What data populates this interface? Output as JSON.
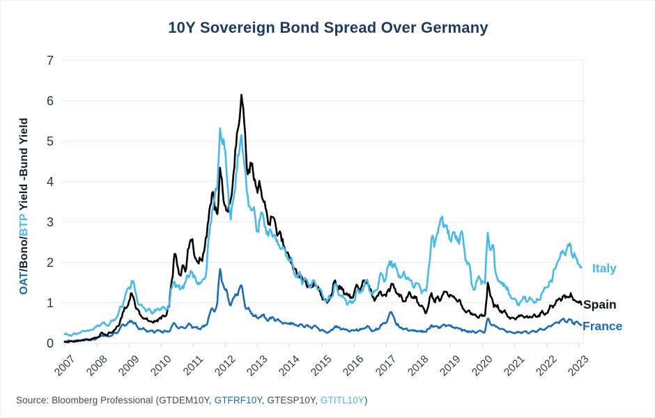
{
  "title": "10Y Sovereign Bond Spread Over Germany",
  "y_axis": {
    "label": "OAT/Bono/BTP Yield -Bund Yield",
    "label_parts": [
      {
        "text": "OAT",
        "color": "#1a6cb5"
      },
      {
        "text": "/Bono/",
        "color": "#101c2b"
      },
      {
        "text": "BTP",
        "color": "#49b8ea"
      },
      {
        "text": " Yield -Bund Yield",
        "color": "#101c2b"
      }
    ],
    "ticks": [
      "0",
      "1",
      "2",
      "3",
      "4",
      "5",
      "6",
      "7"
    ]
  },
  "x_axis": {
    "ticks": [
      "2007",
      "2008",
      "2009",
      "2010",
      "2011",
      "2012",
      "2013",
      "2014",
      "2015",
      "2016",
      "2017",
      "2018",
      "2019",
      "2020",
      "2021",
      "2022",
      "2023"
    ]
  },
  "legend": [
    {
      "label": "Italy",
      "color": "#49b8ea"
    },
    {
      "label": "Spain",
      "color": "#0a1420"
    },
    {
      "label": "France",
      "color": "#1a6cb5"
    }
  ],
  "source": {
    "parts": [
      {
        "text": "Source: Bloomberg Professional (",
        "color": "#43474c"
      },
      {
        "text": "GTDEM10Y",
        "color": "#43474c"
      },
      {
        "text": ", ",
        "color": "#43474c"
      },
      {
        "text": "GTFRF10Y",
        "color": "#1a6cb5"
      },
      {
        "text": ", ",
        "color": "#43474c"
      },
      {
        "text": "GTESP10Y",
        "color": "#43474c"
      },
      {
        "text": ", ",
        "color": "#43474c"
      },
      {
        "text": "GTITL10Y",
        "color": "#49b8ea"
      },
      {
        "text": ")",
        "color": "#43474c"
      }
    ]
  },
  "chart_data": {
    "type": "line",
    "title": "10Y Sovereign Bond Spread Over Germany",
    "xlabel": "",
    "ylabel": "OAT/Bono/BTP Yield -Bund Yield",
    "xlim": [
      2007,
      2023.2
    ],
    "ylim": [
      0,
      7
    ],
    "grid": "horizontal",
    "legend_position": "right-of-line-ends",
    "x_start_year": 2007,
    "frequency": "monthly",
    "units": "percentage points",
    "series": [
      {
        "name": "Italy",
        "color": "#49b8ea",
        "monthly_values": [
          0.22,
          0.21,
          0.2,
          0.21,
          0.22,
          0.24,
          0.26,
          0.3,
          0.32,
          0.3,
          0.33,
          0.38,
          0.4,
          0.44,
          0.5,
          0.47,
          0.45,
          0.5,
          0.55,
          0.62,
          0.72,
          0.92,
          1.05,
          1.25,
          1.4,
          1.55,
          1.4,
          1.1,
          0.95,
          0.9,
          0.85,
          0.8,
          0.8,
          0.78,
          0.8,
          0.85,
          0.85,
          0.88,
          0.85,
          0.95,
          1.35,
          1.55,
          1.4,
          1.32,
          1.42,
          1.48,
          1.65,
          1.8,
          1.62,
          1.55,
          1.5,
          1.48,
          1.58,
          1.85,
          2.7,
          3.3,
          3.6,
          3.85,
          5.35,
          4.9,
          4.7,
          3.8,
          3.0,
          3.6,
          4.2,
          4.6,
          5.2,
          4.5,
          3.7,
          3.4,
          3.3,
          3.15,
          2.8,
          3.05,
          3.2,
          2.9,
          2.6,
          2.8,
          2.7,
          2.5,
          2.45,
          2.35,
          2.3,
          2.15,
          2.05,
          1.95,
          1.72,
          1.62,
          1.7,
          1.52,
          1.58,
          1.48,
          1.4,
          1.55,
          1.45,
          1.33,
          1.25,
          1.08,
          1.02,
          1.12,
          1.18,
          1.45,
          1.28,
          1.18,
          1.12,
          1.05,
          1.0,
          0.97,
          1.05,
          1.28,
          1.22,
          1.32,
          1.4,
          1.55,
          1.28,
          1.18,
          1.32,
          1.38,
          1.72,
          1.6,
          1.62,
          1.92,
          2.05,
          1.88,
          1.8,
          1.68,
          1.62,
          1.7,
          1.65,
          1.52,
          1.42,
          1.5,
          1.45,
          1.32,
          1.3,
          1.26,
          1.9,
          2.6,
          2.38,
          2.72,
          2.9,
          3.12,
          2.95,
          2.68,
          2.58,
          2.78,
          2.55,
          2.58,
          2.72,
          2.4,
          2.05,
          1.95,
          1.45,
          1.35,
          1.52,
          1.6,
          1.55,
          1.42,
          2.75,
          2.3,
          2.38,
          1.75,
          1.52,
          1.45,
          1.5,
          1.32,
          1.2,
          1.12,
          1.1,
          0.95,
          1.0,
          1.05,
          1.15,
          1.05,
          1.08,
          1.05,
          1.02,
          1.05,
          1.22,
          1.32,
          1.38,
          1.55,
          1.5,
          1.85,
          2.0,
          2.1,
          2.3,
          2.18,
          2.4,
          2.45,
          2.12,
          2.1,
          1.98,
          1.88
        ]
      },
      {
        "name": "Spain",
        "color": "#000000",
        "monthly_values": [
          0.03,
          0.03,
          0.04,
          0.04,
          0.05,
          0.05,
          0.06,
          0.08,
          0.09,
          0.08,
          0.1,
          0.12,
          0.14,
          0.18,
          0.25,
          0.22,
          0.2,
          0.25,
          0.3,
          0.35,
          0.42,
          0.62,
          0.78,
          0.88,
          1.05,
          1.22,
          1.05,
          0.85,
          0.7,
          0.65,
          0.6,
          0.55,
          0.55,
          0.5,
          0.55,
          0.6,
          0.6,
          0.68,
          0.7,
          0.9,
          1.6,
          2.2,
          1.9,
          1.72,
          1.9,
          1.78,
          2.35,
          2.55,
          2.4,
          2.1,
          1.95,
          2.1,
          2.28,
          2.62,
          3.35,
          3.7,
          3.3,
          3.25,
          4.3,
          3.7,
          3.45,
          3.2,
          3.55,
          4.2,
          4.85,
          5.4,
          6.15,
          5.45,
          4.4,
          4.2,
          4.45,
          4.1,
          3.7,
          3.9,
          3.55,
          3.3,
          2.95,
          3.15,
          3.05,
          2.85,
          2.7,
          2.52,
          2.42,
          2.25,
          2.1,
          2.0,
          1.8,
          1.65,
          1.72,
          1.5,
          1.55,
          1.45,
          1.35,
          1.5,
          1.42,
          1.28,
          1.18,
          1.05,
          1.0,
          1.15,
          1.25,
          1.55,
          1.4,
          1.32,
          1.35,
          1.2,
          1.15,
          1.15,
          1.22,
          1.42,
          1.32,
          1.42,
          1.52,
          1.55,
          1.28,
          1.15,
          1.1,
          1.15,
          1.28,
          1.2,
          1.15,
          1.35,
          1.45,
          1.35,
          1.25,
          1.15,
          1.1,
          1.05,
          1.12,
          1.25,
          1.15,
          1.1,
          1.0,
          0.92,
          0.85,
          0.75,
          0.98,
          1.22,
          1.05,
          1.1,
          1.05,
          1.2,
          1.25,
          1.2,
          1.2,
          1.12,
          1.1,
          1.05,
          0.95,
          0.85,
          0.75,
          0.8,
          0.75,
          0.7,
          0.65,
          0.7,
          0.65,
          0.7,
          1.52,
          1.15,
          1.0,
          0.92,
          0.85,
          0.8,
          0.78,
          0.72,
          0.65,
          0.62,
          0.6,
          0.65,
          0.65,
          0.68,
          0.65,
          0.62,
          0.65,
          0.68,
          0.65,
          0.7,
          0.75,
          0.72,
          0.75,
          0.85,
          0.92,
          0.95,
          1.05,
          1.1,
          1.15,
          1.1,
          1.15,
          1.22,
          1.05,
          1.05,
          1.0,
          0.95
        ]
      },
      {
        "name": "France",
        "color": "#1a6cb5",
        "monthly_values": [
          0.05,
          0.05,
          0.05,
          0.05,
          0.06,
          0.06,
          0.07,
          0.08,
          0.09,
          0.08,
          0.09,
          0.1,
          0.12,
          0.15,
          0.2,
          0.18,
          0.16,
          0.18,
          0.22,
          0.25,
          0.28,
          0.4,
          0.46,
          0.45,
          0.5,
          0.55,
          0.5,
          0.4,
          0.36,
          0.35,
          0.32,
          0.3,
          0.3,
          0.28,
          0.3,
          0.3,
          0.28,
          0.3,
          0.28,
          0.3,
          0.42,
          0.48,
          0.4,
          0.38,
          0.4,
          0.38,
          0.45,
          0.46,
          0.4,
          0.38,
          0.36,
          0.38,
          0.4,
          0.46,
          0.7,
          0.85,
          0.8,
          1.0,
          1.82,
          1.5,
          1.3,
          1.1,
          0.95,
          1.1,
          1.2,
          1.32,
          1.4,
          1.05,
          0.85,
          0.8,
          0.75,
          0.65,
          0.62,
          0.66,
          0.68,
          0.62,
          0.56,
          0.6,
          0.62,
          0.58,
          0.55,
          0.52,
          0.5,
          0.48,
          0.5,
          0.48,
          0.45,
          0.44,
          0.46,
          0.42,
          0.43,
          0.4,
          0.38,
          0.42,
          0.4,
          0.35,
          0.32,
          0.28,
          0.26,
          0.28,
          0.32,
          0.42,
          0.38,
          0.35,
          0.36,
          0.32,
          0.3,
          0.32,
          0.3,
          0.35,
          0.32,
          0.34,
          0.38,
          0.42,
          0.35,
          0.3,
          0.32,
          0.35,
          0.45,
          0.48,
          0.5,
          0.66,
          0.75,
          0.64,
          0.45,
          0.4,
          0.38,
          0.35,
          0.33,
          0.32,
          0.3,
          0.32,
          0.3,
          0.28,
          0.3,
          0.28,
          0.35,
          0.45,
          0.4,
          0.42,
          0.4,
          0.42,
          0.45,
          0.44,
          0.42,
          0.4,
          0.38,
          0.36,
          0.35,
          0.32,
          0.28,
          0.3,
          0.28,
          0.27,
          0.28,
          0.3,
          0.28,
          0.3,
          0.6,
          0.48,
          0.45,
          0.4,
          0.38,
          0.35,
          0.33,
          0.3,
          0.28,
          0.26,
          0.25,
          0.26,
          0.26,
          0.28,
          0.28,
          0.26,
          0.28,
          0.3,
          0.28,
          0.32,
          0.35,
          0.34,
          0.36,
          0.42,
          0.45,
          0.48,
          0.52,
          0.55,
          0.58,
          0.54,
          0.56,
          0.58,
          0.5,
          0.52,
          0.48,
          0.45
        ]
      }
    ]
  }
}
